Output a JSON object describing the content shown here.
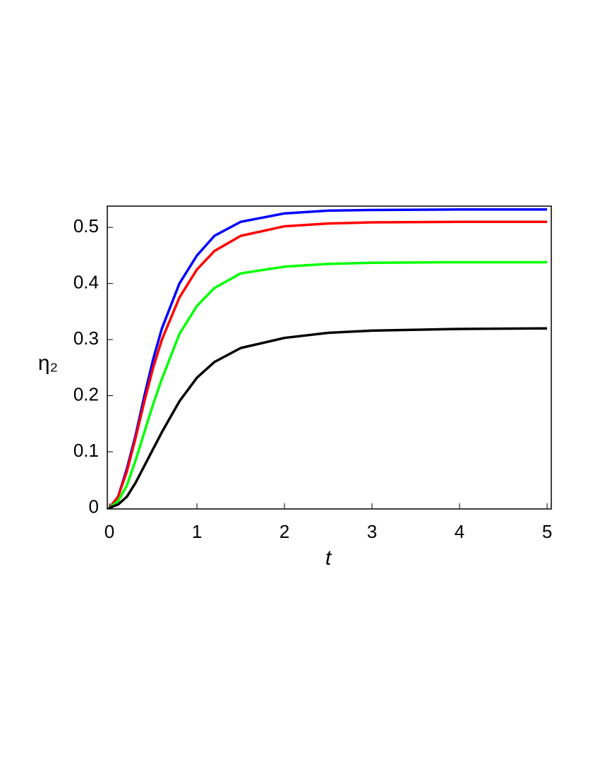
{
  "chart_data": {
    "type": "line",
    "xlabel": "t",
    "ylabel": "η₂",
    "x": [
      0,
      0.1,
      0.2,
      0.3,
      0.4,
      0.5,
      0.6,
      0.8,
      1,
      1.2,
      1.5,
      2,
      2.5,
      3,
      4,
      5
    ],
    "series": [
      {
        "color": "#0000ff",
        "values": [
          0,
          0.02,
          0.07,
          0.13,
          0.2,
          0.265,
          0.32,
          0.4,
          0.45,
          0.485,
          0.51,
          0.525,
          0.53,
          0.531,
          0.532,
          0.532
        ]
      },
      {
        "color": "#ff0000",
        "values": [
          0,
          0.02,
          0.065,
          0.125,
          0.19,
          0.25,
          0.3,
          0.375,
          0.425,
          0.458,
          0.485,
          0.502,
          0.507,
          0.509,
          0.51,
          0.51
        ]
      },
      {
        "color": "#00ff00",
        "values": [
          0,
          0.012,
          0.04,
          0.085,
          0.135,
          0.185,
          0.23,
          0.31,
          0.36,
          0.392,
          0.418,
          0.43,
          0.435,
          0.437,
          0.438,
          0.438
        ]
      },
      {
        "color": "#000000",
        "values": [
          0,
          0.006,
          0.02,
          0.045,
          0.075,
          0.105,
          0.135,
          0.19,
          0.232,
          0.26,
          0.285,
          0.303,
          0.312,
          0.316,
          0.319,
          0.32
        ]
      }
    ],
    "xlim": [
      -0.024,
      5.048
    ],
    "ylim": [
      -0.002,
      0.538
    ],
    "xticks": [
      0,
      1,
      2,
      3,
      4,
      5
    ],
    "yticks": [
      0,
      0.1,
      0.2,
      0.3,
      0.4,
      0.5
    ]
  }
}
